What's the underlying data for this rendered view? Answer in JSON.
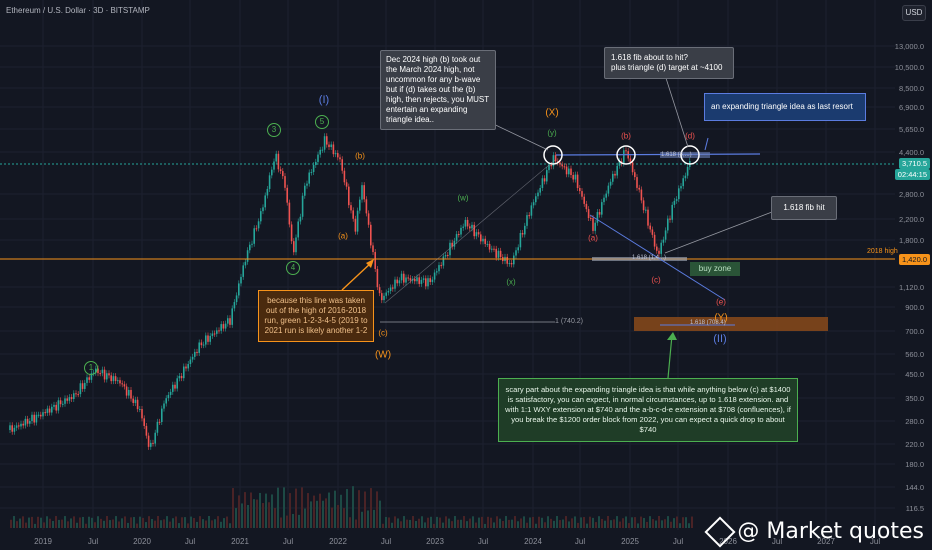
{
  "header": {
    "symbol": "Ethereum / U.S. Dollar · 3D · BITSTAMP",
    "currency": "USD"
  },
  "price_axis": {
    "labels": [
      "13,000.0",
      "10,500.0",
      "8,500.0",
      "6,900.0",
      "5,650.0",
      "4,400.0",
      "2,800.0",
      "2,200.0",
      "1,800.0",
      "1,120.0",
      "900.0",
      "700.0",
      "560.0",
      "450.0",
      "350.0",
      "280.0",
      "220.0",
      "180.0",
      "144.0",
      "116.5"
    ],
    "current_price": "3,710.5",
    "current_time": "02:44:15",
    "tag_1420": "1,420.0",
    "label_2018_high": "2018 high"
  },
  "time_axis": {
    "labels": [
      "2019",
      "Jul",
      "2020",
      "Jul",
      "2021",
      "Jul",
      "2022",
      "Jul",
      "2023",
      "Jul",
      "2024",
      "Jul",
      "2025",
      "Jul",
      "2026",
      "Jul",
      "2027",
      "Jul"
    ]
  },
  "waves": {
    "I": "(I)",
    "II": "(II)",
    "W": "(W)",
    "X": "(X)",
    "Y": "(Y)",
    "c1": "1",
    "c3": "3",
    "c4": "4",
    "c5": "5",
    "a1": "(a)",
    "b1": "(b)",
    "c_orange": "(c)",
    "w_green": "(w)",
    "x_green": "(x)",
    "y_green": "(y)",
    "a2": "(a)",
    "b2": "(b)",
    "c2": "(c)",
    "d2": "(d)",
    "e2": "(e)"
  },
  "fib": {
    "f740": "1 (740.2)",
    "f1618_top": "1.618 (4,...)",
    "f1618_mid": "1.618 (1,4...)",
    "f1618_low": "1.618 (708.4)"
  },
  "notes": {
    "dec2024": "Dec 2024 high (b) took out the March 2024 high, not uncommon for any b-wave but if (d) takes out the (b) high, then rejects, you MUST entertain an expanding triangle idea..",
    "fib_about": "1.618 fib about to hit?\nplus triangle (d) target at ~4100",
    "expanding": "an expanding triangle idea as last resort",
    "fib_hit": "1.618 fib hit",
    "buy_zone": "buy zone",
    "line_taken": "because this line was taken out of the high of 2016-2018 run, green 1-2-3-4-5 (2019 to 2021 run is likely another 1-2",
    "scary": "scary part about the expanding triangle idea is that while anything below (c) at $1400 is satisfactory, you can expect, in normal circumstances, up to 1.618 extension. and with 1:1 WXY extension at $740 and the a-b-c-d-e extension at $708 (confluences), if you break the $1200 order block from 2022, you can expect a quick drop to about $740"
  },
  "watermark": "@ Market quotes",
  "colors": {
    "up": "#26a69a",
    "down": "#ef5350",
    "orange": "#f7931a",
    "green": "#4caf50",
    "blue": "#5b7ce0",
    "bg": "#131722"
  }
}
